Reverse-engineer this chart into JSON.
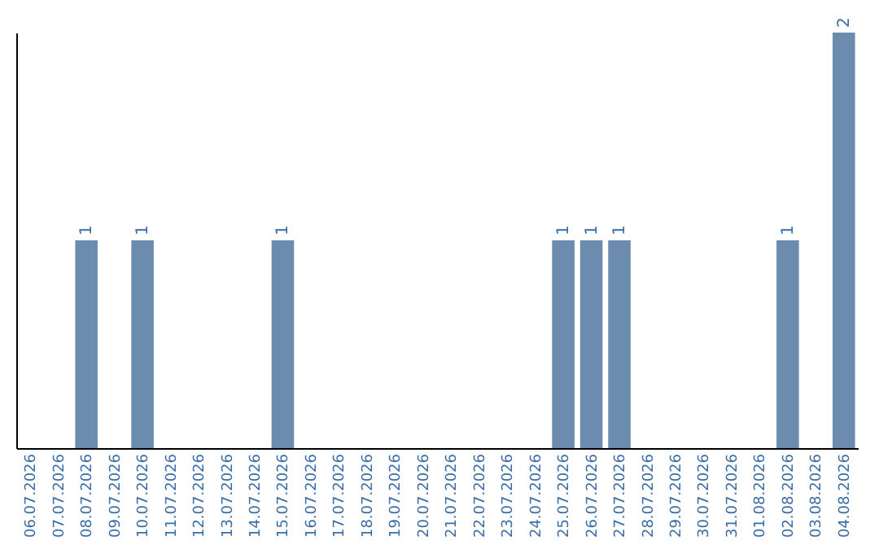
{
  "chart_data": {
    "type": "bar",
    "categories": [
      "06.07.2026",
      "07.07.2026",
      "08.07.2026",
      "09.07.2026",
      "10.07.2026",
      "11.07.2026",
      "12.07.2026",
      "13.07.2026",
      "14.07.2026",
      "15.07.2026",
      "16.07.2026",
      "17.07.2026",
      "18.07.2026",
      "19.07.2026",
      "20.07.2026",
      "21.07.2026",
      "22.07.2026",
      "23.07.2026",
      "24.07.2026",
      "25.07.2026",
      "26.07.2026",
      "27.07.2026",
      "28.07.2026",
      "29.07.2026",
      "30.07.2026",
      "31.07.2026",
      "01.08.2026",
      "02.08.2026",
      "03.08.2026",
      "04.08.2026"
    ],
    "values": [
      0,
      0,
      1,
      0,
      1,
      0,
      0,
      0,
      0,
      1,
      0,
      0,
      0,
      0,
      0,
      0,
      0,
      0,
      0,
      1,
      1,
      1,
      0,
      0,
      0,
      0,
      0,
      1,
      0,
      2
    ],
    "value_labels": [
      null,
      null,
      "1",
      null,
      "1",
      null,
      null,
      null,
      null,
      "1",
      null,
      null,
      null,
      null,
      null,
      null,
      null,
      null,
      null,
      "1",
      "1",
      "1",
      null,
      null,
      null,
      null,
      null,
      "1",
      null,
      "2"
    ],
    "color": "#6b8cae",
    "ylim": [
      0,
      2
    ],
    "tick_labels": "x"
  }
}
